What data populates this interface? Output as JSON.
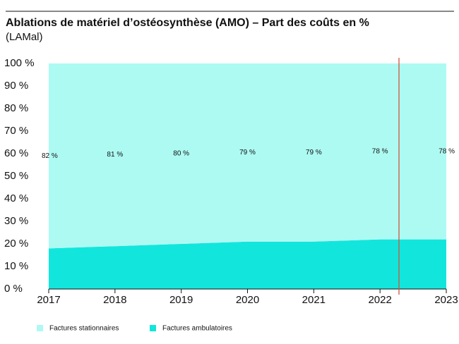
{
  "chart_data": {
    "type": "area",
    "title": "Ablations de matériel d’ostéosynthèse (AMO) – Part des coûts en %",
    "subtitle": "(LAMal)",
    "x": [
      2017,
      2018,
      2019,
      2020,
      2021,
      2022,
      2023
    ],
    "xlim": [
      2017,
      2023
    ],
    "xticks": [
      2017,
      2018,
      2019,
      2020,
      2021,
      2022,
      2023
    ],
    "ylim": [
      0,
      100
    ],
    "yticks": [
      {
        "value": 0,
        "label": "0 %"
      },
      {
        "value": 10,
        "label": "10 %"
      },
      {
        "value": 20,
        "label": "20 %"
      },
      {
        "value": 30,
        "label": "30 %"
      },
      {
        "value": 40,
        "label": "40 %"
      },
      {
        "value": 50,
        "label": "50 %"
      },
      {
        "value": 60,
        "label": "60 %"
      },
      {
        "value": 70,
        "label": "70 %"
      },
      {
        "value": 80,
        "label": "80 %"
      },
      {
        "value": 90,
        "label": "90 %"
      },
      {
        "value": 100,
        "label": "100 %"
      }
    ],
    "stacked": true,
    "series": [
      {
        "name": "Factures stationnaires",
        "color": "#adfaf3",
        "values": [
          82,
          81,
          80,
          79,
          79,
          78,
          78
        ],
        "value_labels": [
          "82 %",
          "81 %",
          "80 %",
          "79 %",
          "79 %",
          "78 %",
          "78 %"
        ]
      },
      {
        "name": "Factures ambulatoires",
        "color": "#12e6dc",
        "values": [
          18,
          19,
          20,
          21,
          21,
          22,
          22
        ]
      }
    ]
  }
}
